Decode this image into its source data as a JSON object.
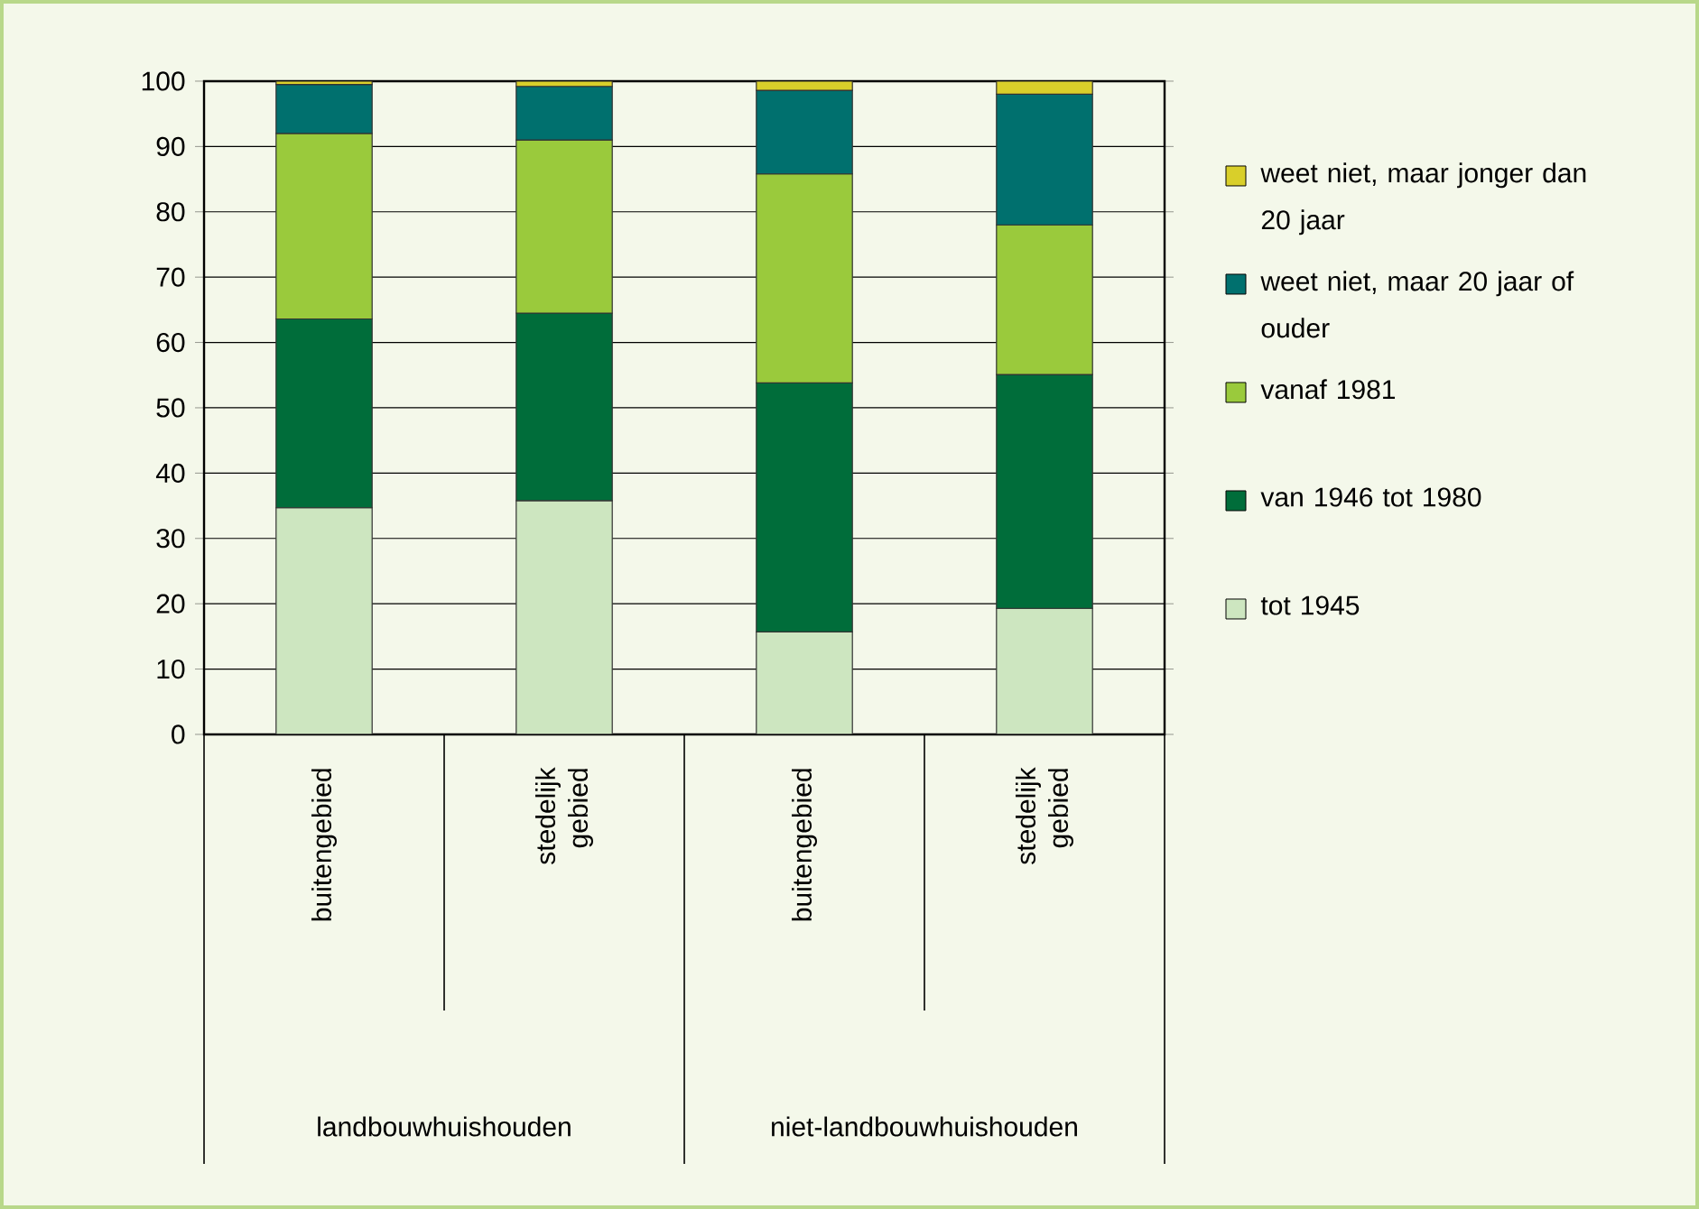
{
  "chart_data": {
    "type": "bar",
    "stacked": true,
    "categories": [
      "buitengebied",
      "stedelijk gebied",
      "buitengebied",
      "stedelijk gebied"
    ],
    "annotations": [
      "landbouwhuishouden",
      "niet-landbouwhuishouden"
    ],
    "series": [
      {
        "name": "tot 1945",
        "color": "#cde6c0",
        "values": [
          34.7,
          35.8,
          15.7,
          19.3
        ]
      },
      {
        "name": "van 1946 tot 1980",
        "color": "#006d3a",
        "values": [
          28.9,
          28.7,
          38.1,
          35.8
        ]
      },
      {
        "name": "vanaf 1981",
        "color": "#9aca3c",
        "values": [
          28.4,
          26.5,
          32.0,
          22.9
        ]
      },
      {
        "name": "weet niet, maar 20 jaar of ouder",
        "color": "#00706e",
        "values": [
          7.5,
          8.2,
          12.8,
          20.0
        ]
      },
      {
        "name": "weet niet, maar jonger dan 20 jaar",
        "color": "#d9cf2a",
        "values": [
          0.5,
          0.8,
          1.4,
          2.0
        ]
      }
    ],
    "ylim": [
      0,
      100
    ],
    "yticks": [
      0,
      10,
      20,
      30,
      40,
      50,
      60,
      70,
      80,
      90,
      100
    ],
    "grid": "y",
    "legend": "right"
  }
}
